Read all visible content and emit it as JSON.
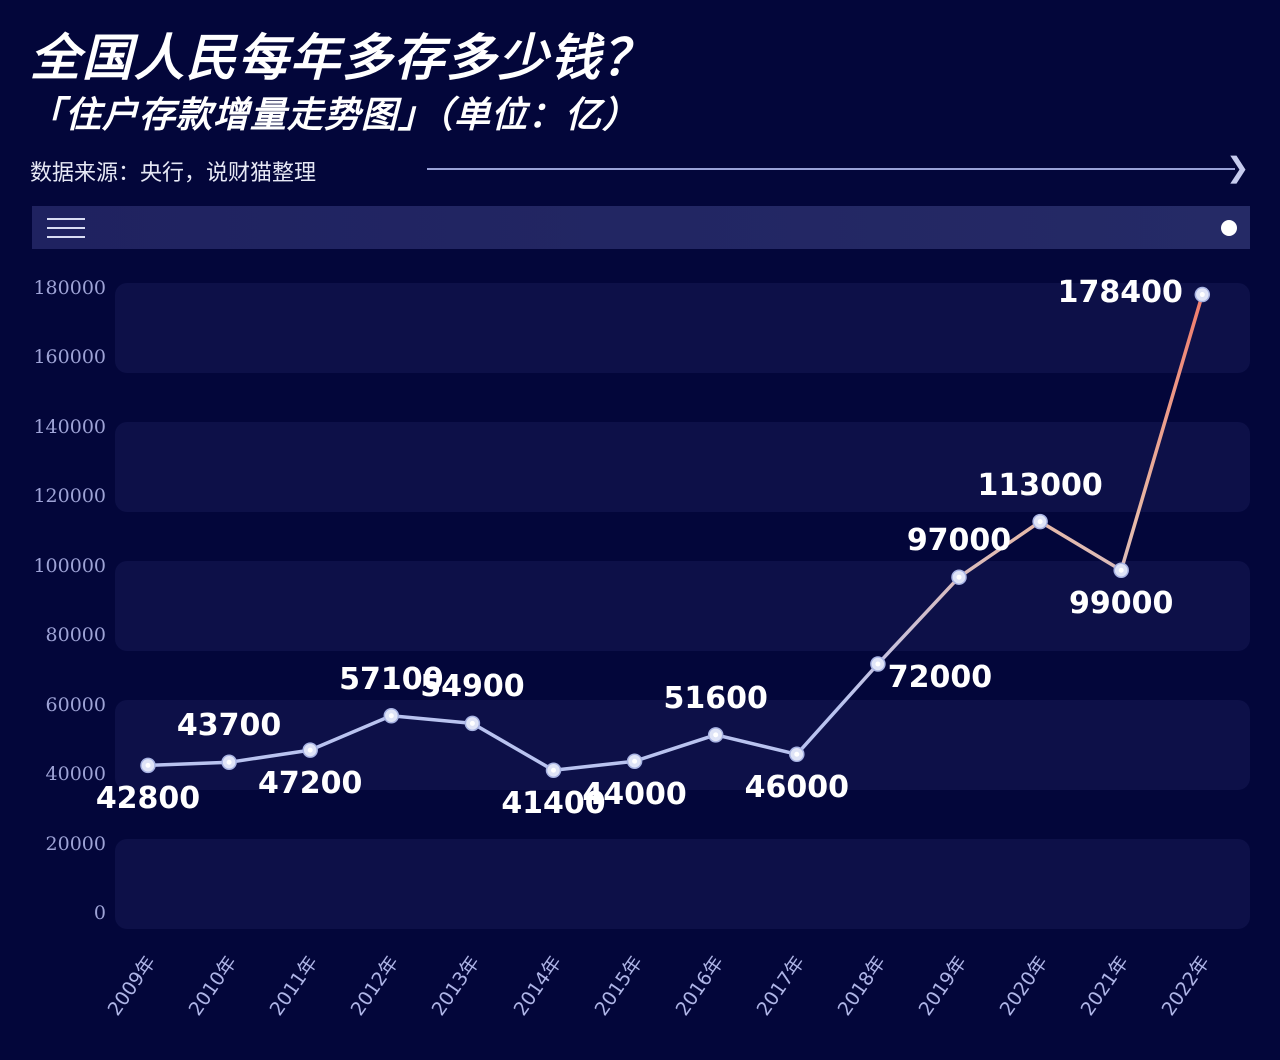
{
  "header": {
    "title": "全国人民每年多存多少钱？",
    "subtitle": "「住户存款增量走势图」（单位：亿）",
    "source": "数据来源：央行，说财猫整理",
    "arrow_icon": "chevron-right-icon"
  },
  "toolbar": {
    "menu_icon": "hamburger-menu-icon",
    "toggle_icon": "white-dot-icon"
  },
  "colors": {
    "background": "#03063a",
    "band": "#0d1048",
    "toolbar": "#22265f",
    "line_start": "#b9c3f0",
    "line_end": "#f07a6a",
    "axis_text": "#9ea3d6",
    "label_text": "#ffffff"
  },
  "axis": {
    "y_ticks": [
      "180000",
      "160000",
      "140000",
      "120000",
      "100000",
      "80000",
      "60000",
      "40000",
      "20000",
      "0"
    ],
    "x_ticks": [
      "2009年",
      "2010年",
      "2011年",
      "2012年",
      "2013年",
      "2014年",
      "2015年",
      "2016年",
      "2017年",
      "2018年",
      "2019年",
      "2020年",
      "2021年",
      "2022年"
    ]
  },
  "chart_data": {
    "type": "line",
    "title": "全国人民每年多存多少钱？",
    "subtitle": "「住户存款增量走势图」（单位：亿）",
    "source": "数据来源：央行，说财猫整理",
    "xlabel": "",
    "ylabel": "",
    "categories": [
      "2009年",
      "2010年",
      "2011年",
      "2012年",
      "2013年",
      "2014年",
      "2015年",
      "2016年",
      "2017年",
      "2018年",
      "2019年",
      "2020年",
      "2021年",
      "2022年"
    ],
    "series": [
      {
        "name": "住户存款增量",
        "values": [
          42800,
          43700,
          47200,
          57100,
          54900,
          41400,
          44000,
          51600,
          46000,
          72000,
          97000,
          113000,
          99000,
          178400
        ]
      }
    ],
    "labels": [
      "42800",
      "43700",
      "47200",
      "57100",
      "54900",
      "41400",
      "44000",
      "51600",
      "46000",
      "72000",
      "97000",
      "113000",
      "99000",
      "178400"
    ],
    "label_positions": [
      "below",
      "above",
      "below",
      "above",
      "above",
      "below",
      "below",
      "above",
      "below",
      "right-below",
      "above",
      "above",
      "below",
      "left"
    ],
    "ylim": [
      0,
      180000
    ],
    "y_tick_step": 20000,
    "grid": "alternating-bands",
    "legend": "none"
  }
}
